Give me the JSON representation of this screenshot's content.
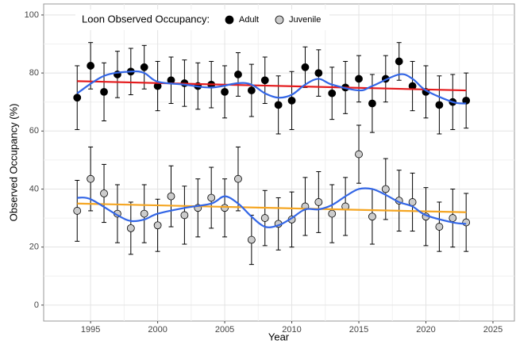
{
  "chart_data": {
    "type": "scatter",
    "legend_title": "Loon Observed Occupancy:",
    "x_label": "Year",
    "y_label": "Observed Occupancy (%)",
    "xlim": [
      1991.5,
      2026.6
    ],
    "ylim": [
      -5.5,
      103.8
    ],
    "xticks": [
      1995,
      2000,
      2005,
      2010,
      2015,
      2020,
      2025
    ],
    "yticks": [
      0,
      20,
      40,
      60,
      80,
      100
    ],
    "grid": true,
    "x": [
      1994,
      1995,
      1996,
      1997,
      1998,
      1999,
      2000,
      2001,
      2002,
      2003,
      2004,
      2005,
      2006,
      2007,
      2008,
      2009,
      2010,
      2011,
      2012,
      2013,
      2014,
      2015,
      2016,
      2017,
      2018,
      2019,
      2020,
      2021,
      2022,
      2023
    ],
    "series": [
      {
        "name": "Adult",
        "color": "#000000",
        "values": [
          71.5,
          82.5,
          73.5,
          79.5,
          80.5,
          82,
          75.5,
          77.5,
          76.5,
          75.5,
          76,
          73.5,
          79.5,
          74,
          77.5,
          69,
          70.5,
          82,
          80,
          73,
          75,
          78,
          69.5,
          78,
          84,
          75.5,
          73.5,
          69,
          70,
          70.5
        ],
        "errors": [
          11,
          8,
          10,
          8,
          8,
          7.5,
          8.5,
          8,
          8,
          8,
          8,
          9,
          7.5,
          9,
          8,
          10,
          10,
          7,
          8,
          9,
          9,
          8,
          10,
          8,
          6.5,
          8.5,
          9,
          10,
          9.5,
          9.5
        ]
      },
      {
        "name": "Juvenile",
        "color": "#cccccc",
        "values": [
          32.5,
          43.5,
          38.5,
          31.5,
          26.5,
          31.5,
          27.5,
          37.5,
          31,
          33.5,
          37,
          33.5,
          43.5,
          22.5,
          30,
          28,
          29.5,
          34,
          35.5,
          31.5,
          34,
          52,
          30.5,
          40,
          36,
          35.5,
          30.5,
          27,
          30,
          28.5
        ],
        "errors": [
          10.5,
          11,
          10,
          10,
          9,
          10,
          9,
          10.5,
          10,
          10,
          10.5,
          10,
          11,
          8.5,
          9.5,
          9,
          9.5,
          10,
          10.5,
          10,
          10,
          10,
          9.5,
          10.5,
          10.5,
          10,
          10,
          8.5,
          10,
          10
        ]
      }
    ],
    "lines": [
      {
        "color": "#e41a1c",
        "x": [
          1994,
          2023
        ],
        "values": [
          77.2,
          74
        ]
      },
      {
        "color": "#f5a623",
        "x": [
          1994,
          2023
        ],
        "values": [
          35,
          32
        ]
      },
      {
        "color": "#3366e6",
        "x": [
          1994,
          1996,
          1998,
          1999,
          2000,
          2002,
          2004,
          2006,
          2007,
          2008,
          2009,
          2010,
          2011,
          2012,
          2013,
          2015,
          2016,
          2018,
          2019,
          2020,
          2022,
          2023
        ],
        "values": [
          73,
          79,
          80.5,
          80,
          77,
          76,
          75,
          76.5,
          76,
          73,
          71.5,
          72.5,
          76,
          78,
          76,
          74,
          75.5,
          79.5,
          78,
          74,
          70,
          69.5
        ]
      },
      {
        "color": "#3366e6",
        "x": [
          1994,
          1995,
          1997,
          1998,
          1999,
          2000,
          2002,
          2004,
          2005,
          2006,
          2007,
          2008,
          2009,
          2010,
          2011,
          2012,
          2013,
          2014,
          2015,
          2016,
          2017,
          2018,
          2019,
          2020,
          2022,
          2023
        ],
        "values": [
          37,
          36.5,
          31,
          29,
          29.5,
          31.5,
          33.5,
          35,
          37.5,
          35,
          30.5,
          27,
          27.5,
          30,
          33,
          33,
          34.5,
          37.5,
          40,
          40,
          38,
          35.5,
          34,
          31,
          28.5,
          28
        ]
      }
    ]
  }
}
